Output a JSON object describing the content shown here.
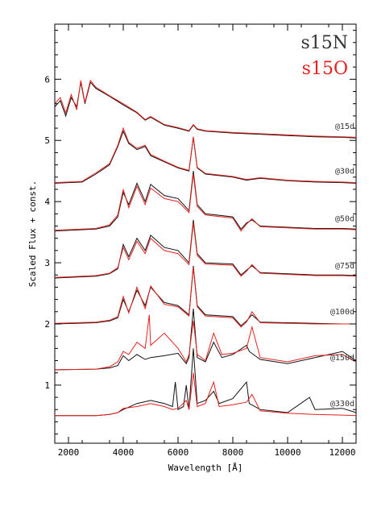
{
  "chart_data": {
    "type": "line",
    "xlabel": "Wavelength  [Å]",
    "ylabel": "Scaled Flux + const.",
    "xlim": [
      1500,
      12500
    ],
    "ylim": [
      0.05,
      6.9
    ],
    "x_ticks": [
      2000,
      4000,
      6000,
      8000,
      10000,
      12000
    ],
    "x_tick_labels": [
      "2000",
      "4000",
      "6000",
      "8000",
      "10000",
      "12000"
    ],
    "y_ticks": [
      1,
      2,
      3,
      4,
      5,
      6
    ],
    "y_tick_labels": [
      "1",
      "2",
      "3",
      "4",
      "5",
      "6"
    ],
    "grid": false,
    "legend": [
      {
        "name": "s15N",
        "color": "#333333"
      },
      {
        "name": "s15O",
        "color": "#e8201c"
      }
    ],
    "colors": {
      "s15N": "#111111",
      "s15O": "#e8201c"
    },
    "epochs": [
      {
        "label": "@15d",
        "offset": 5.03,
        "baseline": 0.0
      },
      {
        "label": "@30d",
        "offset": 4.3,
        "baseline": 0.0
      },
      {
        "label": "@50d",
        "offset": 3.52,
        "baseline": 0.0
      },
      {
        "label": "@75d",
        "offset": 2.75,
        "baseline": 0.0
      },
      {
        "label": "@100d",
        "offset": 2.0,
        "baseline": 0.0
      },
      {
        "label": "@150d",
        "offset": 1.25,
        "baseline": 0.0
      },
      {
        "label": "@330d",
        "offset": 0.5,
        "baseline": 0.0
      }
    ],
    "series": [
      {
        "name": "s15N @15d",
        "x": [
          1500,
          1700,
          1900,
          2100,
          2300,
          2450,
          2600,
          2800,
          3000,
          3500,
          4000,
          4500,
          4800,
          5000,
          5500,
          6000,
          6400,
          6560,
          6700,
          7000,
          8000,
          9000,
          10000,
          11000,
          12000,
          12500
        ],
        "y": [
          5.55,
          5.65,
          5.4,
          5.7,
          5.55,
          5.95,
          5.6,
          5.95,
          5.85,
          5.72,
          5.58,
          5.45,
          5.33,
          5.38,
          5.25,
          5.2,
          5.15,
          5.25,
          5.18,
          5.15,
          5.12,
          5.1,
          5.08,
          5.06,
          5.05,
          5.04
        ]
      },
      {
        "name": "s15O @15d",
        "x": [
          1500,
          1700,
          1900,
          2100,
          2300,
          2450,
          2600,
          2800,
          3000,
          3500,
          4000,
          4500,
          4800,
          5000,
          5500,
          6000,
          6400,
          6560,
          6700,
          7000,
          8000,
          9000,
          10000,
          11000,
          12000,
          12500
        ],
        "y": [
          5.6,
          5.7,
          5.45,
          5.75,
          5.5,
          5.98,
          5.62,
          5.98,
          5.87,
          5.73,
          5.6,
          5.46,
          5.34,
          5.39,
          5.26,
          5.21,
          5.16,
          5.26,
          5.19,
          5.16,
          5.13,
          5.11,
          5.09,
          5.07,
          5.06,
          5.05
        ]
      },
      {
        "name": "s15N @30d",
        "x": [
          1500,
          2500,
          3000,
          3500,
          3800,
          4000,
          4200,
          4500,
          4800,
          5000,
          5500,
          6000,
          6400,
          6560,
          6700,
          7000,
          8000,
          8500,
          9000,
          10000,
          11000,
          12000,
          12500
        ],
        "y": [
          4.3,
          4.32,
          4.45,
          4.6,
          4.9,
          5.15,
          4.95,
          4.85,
          4.9,
          4.75,
          4.65,
          4.55,
          4.5,
          5.05,
          4.55,
          4.45,
          4.4,
          4.35,
          4.38,
          4.34,
          4.32,
          4.31,
          4.3
        ]
      },
      {
        "name": "s15O @30d",
        "x": [
          1500,
          2500,
          3000,
          3500,
          3800,
          4000,
          4200,
          4500,
          4800,
          5000,
          5500,
          6000,
          6400,
          6560,
          6700,
          7000,
          8000,
          8500,
          9000,
          10000,
          11000,
          12000,
          12500
        ],
        "y": [
          4.31,
          4.33,
          4.47,
          4.62,
          4.92,
          5.2,
          4.97,
          4.87,
          4.92,
          4.77,
          4.66,
          4.56,
          4.51,
          5.06,
          4.56,
          4.46,
          4.41,
          4.36,
          4.39,
          4.35,
          4.33,
          4.32,
          4.31
        ]
      },
      {
        "name": "s15N @50d",
        "x": [
          1500,
          3000,
          3500,
          3800,
          4000,
          4200,
          4500,
          4800,
          5000,
          5500,
          6000,
          6400,
          6560,
          6700,
          7000,
          8000,
          8300,
          8500,
          8700,
          9000,
          10000,
          11000,
          12000,
          12500
        ],
        "y": [
          3.52,
          3.55,
          3.6,
          3.75,
          4.15,
          3.95,
          4.3,
          4.0,
          4.28,
          4.1,
          4.05,
          3.85,
          4.5,
          3.95,
          3.8,
          3.75,
          3.55,
          3.65,
          3.7,
          3.6,
          3.58,
          3.56,
          3.56,
          3.55
        ]
      },
      {
        "name": "s15O @50d",
        "x": [
          1500,
          3000,
          3500,
          3800,
          4000,
          4200,
          4500,
          4800,
          5000,
          5500,
          6000,
          6400,
          6560,
          6700,
          7000,
          8000,
          8300,
          8500,
          8700,
          9000,
          10000,
          11000,
          12000,
          12500
        ],
        "y": [
          3.53,
          3.56,
          3.62,
          3.78,
          4.2,
          3.9,
          4.25,
          3.95,
          4.22,
          4.05,
          4.0,
          3.82,
          4.45,
          3.92,
          3.78,
          3.73,
          3.52,
          3.63,
          3.72,
          3.59,
          3.57,
          3.55,
          3.55,
          3.54
        ]
      },
      {
        "name": "s15N @75d",
        "x": [
          1500,
          3000,
          3500,
          3800,
          4000,
          4200,
          4500,
          4800,
          5000,
          5500,
          6000,
          6400,
          6560,
          6700,
          7000,
          8000,
          8300,
          8500,
          8700,
          9000,
          10000,
          11000,
          12000,
          12500
        ],
        "y": [
          2.75,
          2.78,
          2.82,
          2.9,
          3.3,
          3.1,
          3.4,
          3.2,
          3.45,
          3.25,
          3.2,
          3.0,
          3.7,
          3.15,
          3.0,
          2.98,
          2.8,
          2.88,
          2.95,
          2.84,
          2.82,
          2.8,
          2.8,
          2.79
        ]
      },
      {
        "name": "s15O @75d",
        "x": [
          1500,
          3000,
          3500,
          3800,
          4000,
          4200,
          4500,
          4800,
          5000,
          5500,
          6000,
          6400,
          6560,
          6700,
          7000,
          8000,
          8300,
          8500,
          8700,
          9000,
          10000,
          11000,
          12000,
          12500
        ],
        "y": [
          2.76,
          2.79,
          2.83,
          2.92,
          3.25,
          3.05,
          3.35,
          3.15,
          3.4,
          3.2,
          3.15,
          2.97,
          3.65,
          3.12,
          2.98,
          2.96,
          2.78,
          2.86,
          2.97,
          2.83,
          2.81,
          2.79,
          2.79,
          2.78
        ]
      },
      {
        "name": "s15N @100d",
        "x": [
          1500,
          3000,
          3500,
          3800,
          4000,
          4200,
          4500,
          4800,
          5000,
          5500,
          6000,
          6400,
          6560,
          6700,
          7000,
          8000,
          8300,
          8500,
          8700,
          9000,
          10000,
          11000,
          12000,
          12500
        ],
        "y": [
          2.0,
          2.02,
          2.05,
          2.1,
          2.4,
          2.2,
          2.55,
          2.3,
          2.6,
          2.35,
          2.3,
          2.15,
          2.95,
          2.3,
          2.15,
          2.12,
          1.97,
          2.05,
          2.15,
          2.03,
          2.02,
          2.01,
          2.0,
          2.0
        ]
      },
      {
        "name": "s15O @100d",
        "x": [
          1500,
          3000,
          3500,
          3800,
          4000,
          4200,
          4500,
          4800,
          5000,
          5500,
          6000,
          6400,
          6560,
          6700,
          7000,
          8000,
          8300,
          8500,
          8700,
          9000,
          10000,
          11000,
          12000,
          12500
        ],
        "y": [
          2.01,
          2.03,
          2.06,
          2.12,
          2.45,
          2.18,
          2.6,
          2.25,
          2.62,
          2.32,
          2.28,
          2.13,
          2.92,
          2.28,
          2.13,
          2.1,
          1.95,
          2.03,
          2.2,
          2.02,
          2.01,
          2.0,
          2.0,
          2.0
        ]
      },
      {
        "name": "s15N @150d",
        "x": [
          1500,
          3000,
          3500,
          3800,
          4000,
          4200,
          4500,
          4800,
          5000,
          5500,
          6000,
          6300,
          6400,
          6560,
          6700,
          7000,
          7300,
          7600,
          8000,
          8500,
          8600,
          9000,
          10000,
          11000,
          12000,
          12500
        ],
        "y": [
          1.25,
          1.26,
          1.28,
          1.32,
          1.48,
          1.4,
          1.5,
          1.42,
          1.45,
          1.48,
          1.52,
          1.35,
          1.45,
          2.25,
          1.45,
          1.38,
          1.7,
          1.45,
          1.5,
          1.65,
          1.55,
          1.42,
          1.35,
          1.45,
          1.55,
          1.4
        ]
      },
      {
        "name": "s15O @150d",
        "x": [
          1500,
          3000,
          3500,
          3800,
          4000,
          4200,
          4500,
          4800,
          4950,
          5000,
          5500,
          6000,
          6300,
          6400,
          6560,
          6700,
          7000,
          7300,
          7600,
          8000,
          8500,
          8700,
          9000,
          10000,
          11000,
          12000,
          12500
        ],
        "y": [
          1.25,
          1.26,
          1.3,
          1.38,
          1.55,
          1.5,
          1.7,
          1.6,
          2.15,
          1.65,
          1.85,
          1.6,
          1.38,
          1.5,
          2.05,
          1.5,
          1.4,
          1.85,
          1.5,
          1.52,
          1.6,
          1.95,
          1.45,
          1.38,
          1.48,
          1.5,
          1.38
        ]
      },
      {
        "name": "s15N @330d",
        "x": [
          1500,
          3000,
          3500,
          3800,
          4000,
          4500,
          5000,
          5500,
          5800,
          5900,
          6000,
          6200,
          6300,
          6400,
          6560,
          6700,
          7000,
          7300,
          7500,
          8000,
          8500,
          8600,
          9000,
          10000,
          10800,
          11000,
          12000,
          12500
        ],
        "y": [
          0.5,
          0.5,
          0.52,
          0.55,
          0.6,
          0.7,
          0.75,
          0.7,
          0.65,
          1.05,
          0.6,
          0.65,
          1.0,
          0.6,
          1.6,
          0.7,
          0.75,
          0.9,
          0.7,
          0.78,
          1.05,
          0.7,
          0.6,
          0.55,
          0.8,
          0.6,
          0.62,
          0.55
        ]
      },
      {
        "name": "s15O @330d",
        "x": [
          1500,
          3000,
          3500,
          3800,
          4000,
          4500,
          5000,
          5500,
          5800,
          6000,
          6300,
          6400,
          6560,
          6700,
          7000,
          7300,
          7500,
          8000,
          8500,
          8700,
          9000,
          10000,
          11000,
          12000,
          12500
        ],
        "y": [
          0.5,
          0.5,
          0.52,
          0.55,
          0.62,
          0.65,
          0.7,
          0.65,
          0.6,
          0.62,
          0.75,
          0.6,
          1.2,
          0.65,
          0.7,
          1.05,
          0.65,
          0.68,
          0.72,
          0.85,
          0.58,
          0.54,
          0.52,
          0.51,
          0.5
        ]
      }
    ]
  }
}
